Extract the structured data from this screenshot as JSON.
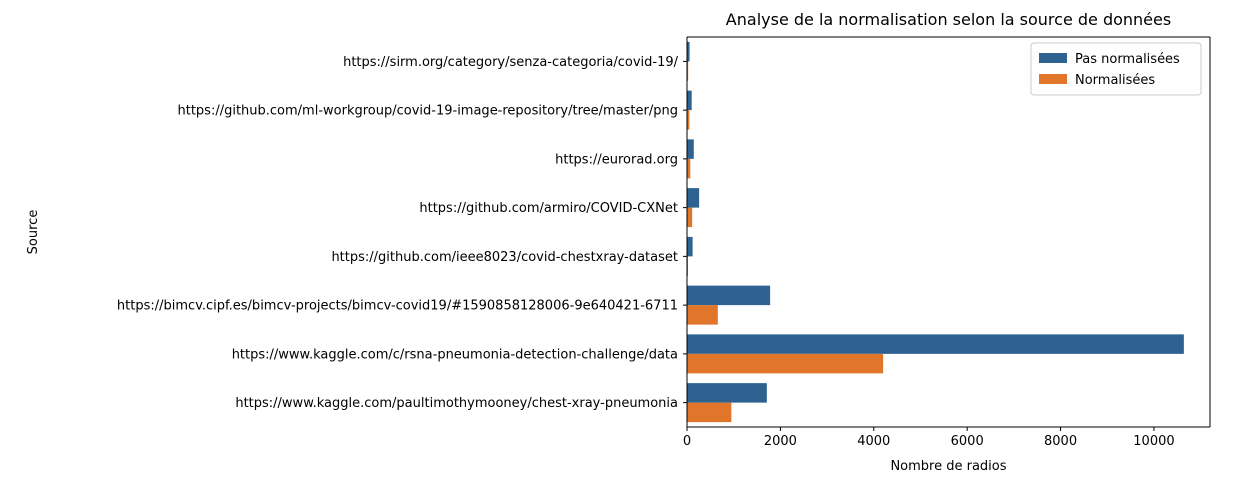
{
  "chart_data": {
    "type": "bar",
    "orientation": "horizontal",
    "title": "Analyse de la normalisation selon la source de données",
    "xlabel": "Nombre de radios",
    "ylabel": "Source",
    "xlim": [
      0,
      11200
    ],
    "xticks": [
      0,
      2000,
      4000,
      6000,
      8000,
      10000
    ],
    "xtick_labels": [
      "0",
      "2000",
      "4000",
      "6000",
      "8000",
      "10000"
    ],
    "grid": false,
    "legend_position": "top-right",
    "categories": [
      "https://sirm.org/category/senza-categoria/covid-19/",
      "https://github.com/ml-workgroup/covid-19-image-repository/tree/master/png",
      "https://eurorad.org",
      "https://github.com/armiro/COVID-CXNet",
      "https://github.com/ieee8023/covid-chestxray-dataset",
      "https://bimcv.cipf.es/bimcv-projects/bimcv-covid19/#1590858128006-9e640421-6711",
      "https://www.kaggle.com/c/rsna-pneumonia-detection-challenge/data",
      "https://www.kaggle.com/paultimothymooney/chest-xray-pneumonia"
    ],
    "series": [
      {
        "name": "Pas normalisées",
        "color": "#2e6391",
        "values": [
          55,
          100,
          145,
          260,
          120,
          1780,
          10640,
          1710
        ]
      },
      {
        "name": "Normalisées",
        "color": "#e1752a",
        "values": [
          25,
          50,
          70,
          110,
          20,
          660,
          4200,
          950
        ]
      }
    ]
  }
}
